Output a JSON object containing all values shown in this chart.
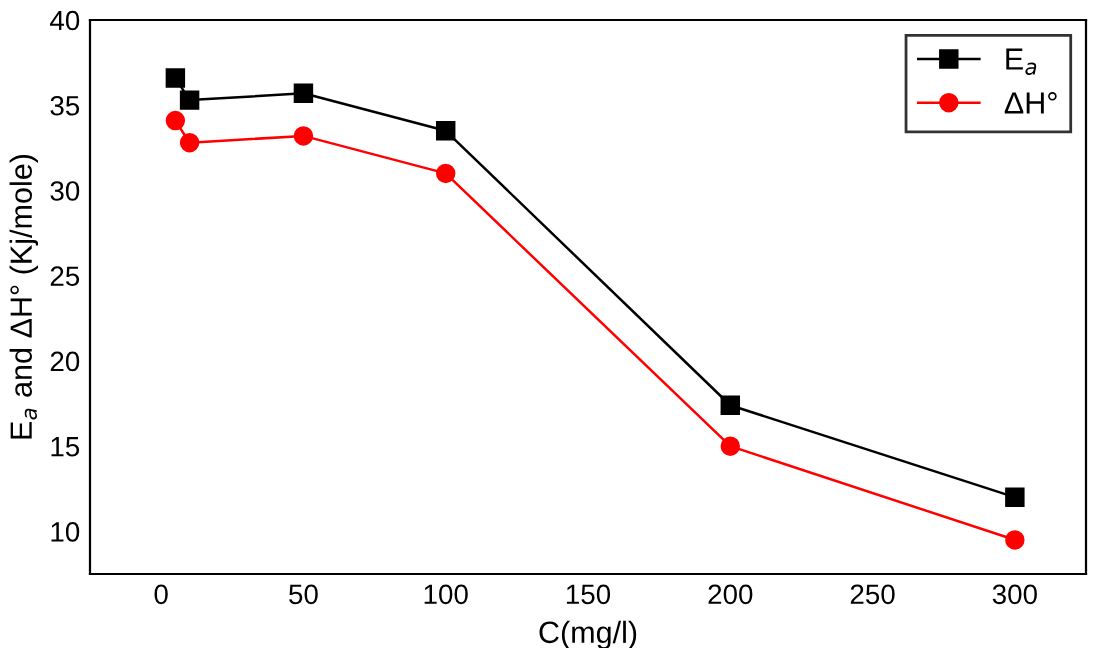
{
  "chart_data": {
    "type": "line",
    "xlabel": "C(mg/l)",
    "ylabel": "E$_{a}$ and ΔH° (Kj/mole)",
    "x": [
      5,
      10,
      50,
      100,
      200,
      300
    ],
    "series": [
      {
        "name": "E$_{a}$",
        "color": "#000000",
        "marker": "square",
        "values": [
          36.6,
          35.3,
          35.7,
          33.5,
          17.4,
          12.0
        ]
      },
      {
        "name": "ΔH°",
        "color": "#ff0000",
        "marker": "circle",
        "values": [
          34.1,
          32.8,
          33.2,
          31.0,
          15.0,
          9.5
        ]
      }
    ],
    "xlim": [
      -25,
      325
    ],
    "xticks": [
      0,
      50,
      100,
      150,
      200,
      250,
      300
    ],
    "ylim": [
      7.5,
      40
    ],
    "yticks": [
      10,
      15,
      20,
      25,
      30,
      35,
      40
    ],
    "grid": false,
    "legend": "top right",
    "line_style": "solid"
  }
}
